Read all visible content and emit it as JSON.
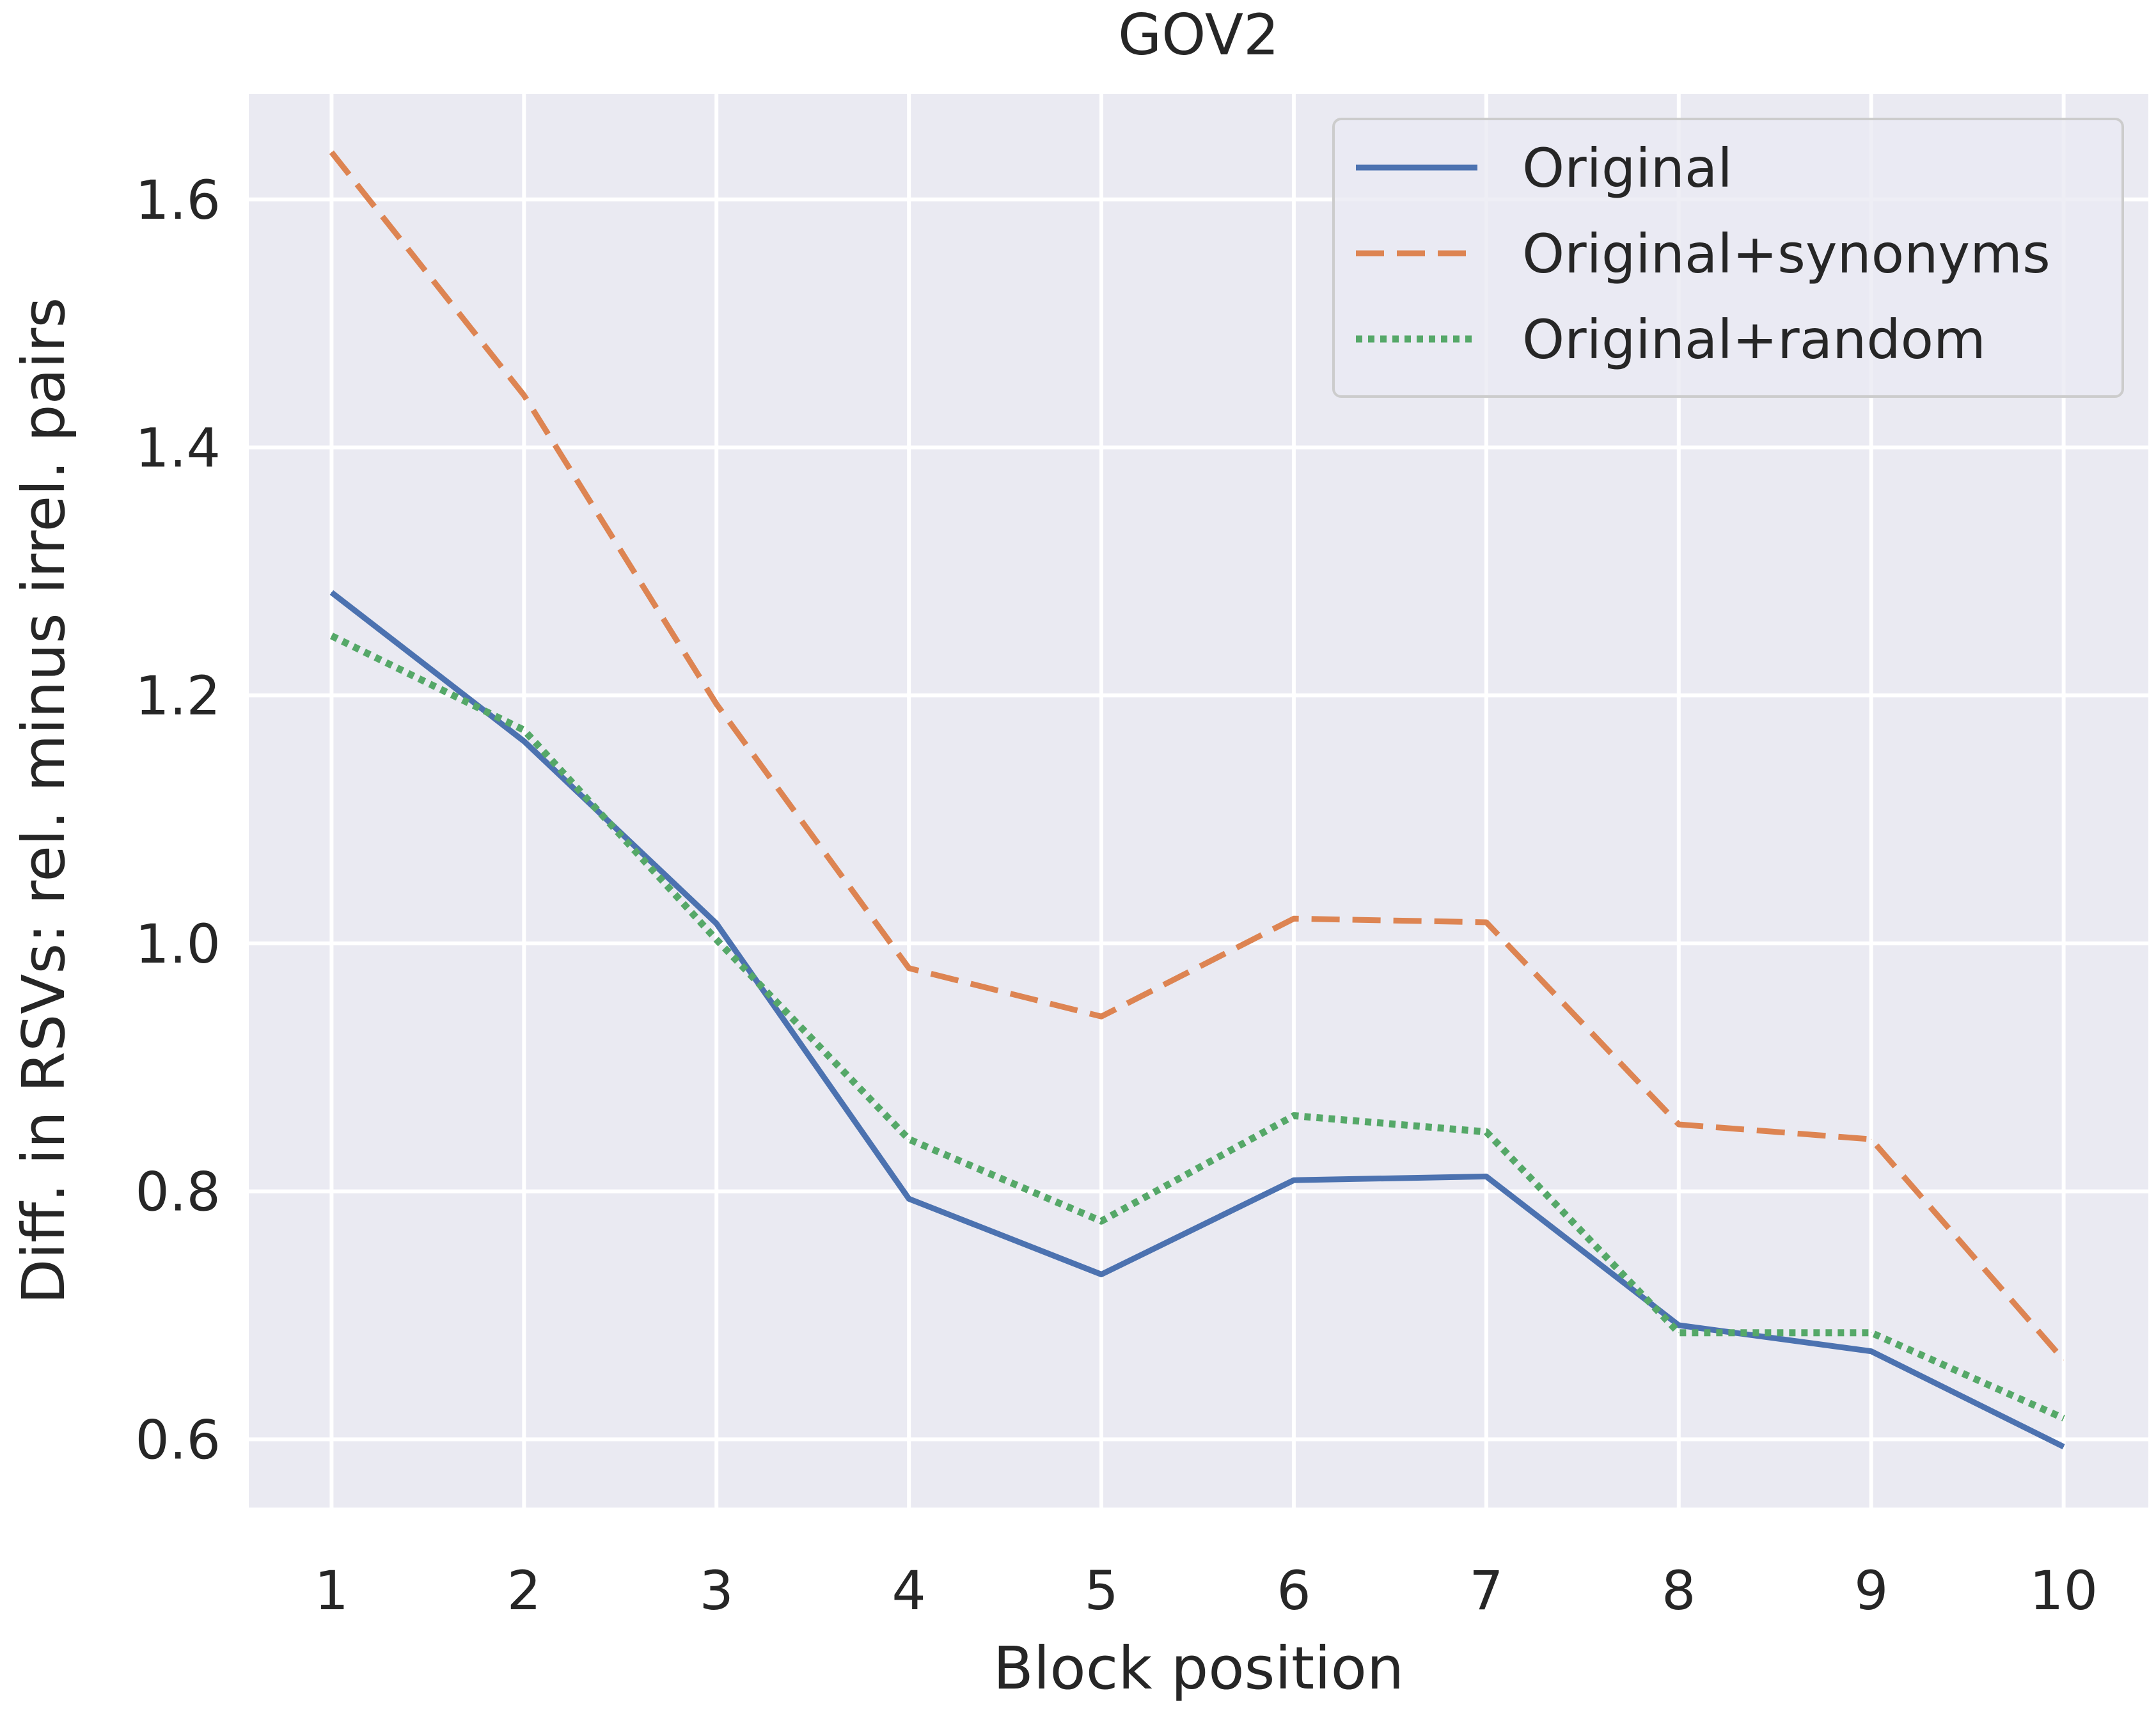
{
  "chart_data": {
    "type": "line",
    "title": "GOV2",
    "xlabel": "Block position",
    "ylabel": "Diff. in RSVs: rel. minus irrel. pairs",
    "x": [
      1,
      2,
      3,
      4,
      5,
      6,
      7,
      8,
      9,
      10
    ],
    "xticks": [
      "1",
      "2",
      "3",
      "4",
      "5",
      "6",
      "7",
      "8",
      "9",
      "10"
    ],
    "yticks": [
      "0.6",
      "0.8",
      "1.0",
      "1.2",
      "1.4",
      "1.6"
    ],
    "xlim": [
      0.57,
      10.44
    ],
    "ylim": [
      0.545,
      1.685
    ],
    "grid": true,
    "legend_position": "upper right",
    "series": [
      {
        "name": "Original",
        "values": [
          1.283,
          1.163,
          1.016,
          0.794,
          0.733,
          0.809,
          0.812,
          0.692,
          0.671,
          0.594
        ],
        "color": "#4c72b0",
        "style": "solid"
      },
      {
        "name": "Original+synonyms",
        "values": [
          1.638,
          1.442,
          1.193,
          0.98,
          0.941,
          1.02,
          1.017,
          0.854,
          0.842,
          0.664
        ],
        "color": "#dd8452",
        "style": "dashed"
      },
      {
        "name": "Original+random",
        "values": [
          1.248,
          1.172,
          1.003,
          0.842,
          0.776,
          0.861,
          0.848,
          0.686,
          0.686,
          0.617
        ],
        "color": "#55a868",
        "style": "dotted"
      }
    ]
  }
}
